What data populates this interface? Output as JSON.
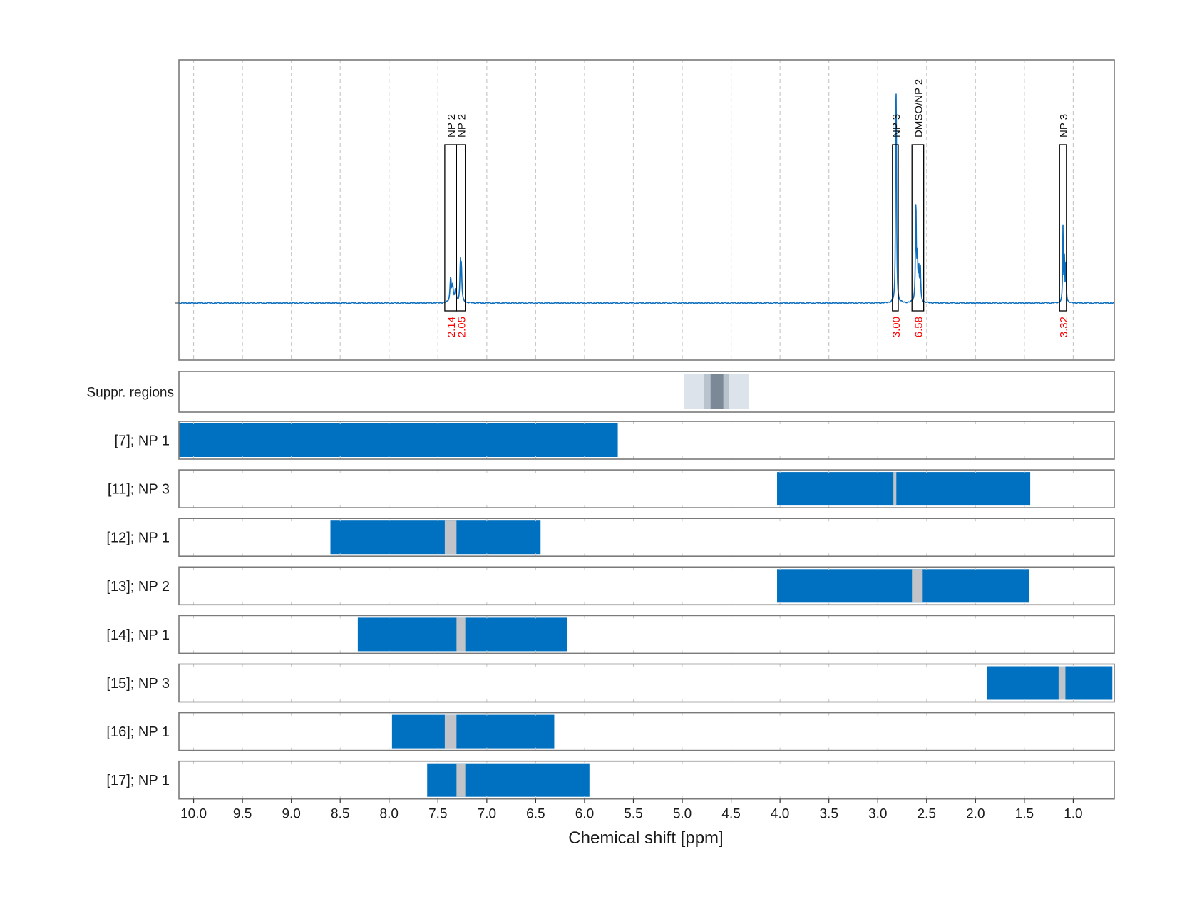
{
  "chart_data": {
    "type": "line",
    "xlabel": "Chemical shift [ppm]",
    "xlim": [
      10.15,
      0.58
    ],
    "x_reversed": true,
    "xticks": [
      10.0,
      9.5,
      9.0,
      8.5,
      8.0,
      7.5,
      7.0,
      6.5,
      6.0,
      5.5,
      5.0,
      4.5,
      4.0,
      3.5,
      3.0,
      2.5,
      2.0,
      1.5,
      1.0
    ],
    "xtick_labels": [
      "10.0",
      "9.5",
      "9.0",
      "8.5",
      "8.0",
      "7.5",
      "7.0",
      "6.5",
      "6.0",
      "5.5",
      "5.0",
      "4.5",
      "4.0",
      "3.5",
      "3.0",
      "2.5",
      "2.0",
      "1.5",
      "1.0"
    ],
    "grid": true,
    "colors": {
      "spectrum": "#0d6ebd",
      "bar": "#0070c0",
      "exclusion": "#c0c4c8",
      "integral_text": "#ff0000",
      "suppr_light": "#dde3ea",
      "suppr_mid": "#b9c3ce",
      "suppr_dark": "#7b8895",
      "box": "#000000",
      "panel_border": "#7a7a7a"
    },
    "spectrum": {
      "baseline": 0,
      "peaks": [
        {
          "center": 7.37,
          "height": 0.15,
          "width": 0.008
        },
        {
          "center": 7.35,
          "height": 0.1,
          "width": 0.008
        },
        {
          "center": 7.32,
          "height": 0.08,
          "width": 0.008
        },
        {
          "center": 7.27,
          "height": 0.23,
          "width": 0.006
        },
        {
          "center": 7.26,
          "height": 0.2,
          "width": 0.006
        },
        {
          "center": 2.815,
          "height": 0.96,
          "width": 0.004
        },
        {
          "center": 2.81,
          "height": 0.9,
          "width": 0.004
        },
        {
          "center": 2.61,
          "height": 0.65,
          "width": 0.005
        },
        {
          "center": 2.595,
          "height": 0.28,
          "width": 0.005
        },
        {
          "center": 2.58,
          "height": 0.2,
          "width": 0.005
        },
        {
          "center": 2.565,
          "height": 0.22,
          "width": 0.005
        },
        {
          "center": 1.105,
          "height": 0.48,
          "width": 0.004
        },
        {
          "center": 1.09,
          "height": 0.27,
          "width": 0.004
        },
        {
          "center": 1.075,
          "height": 0.25,
          "width": 0.004
        }
      ]
    },
    "annotations": [
      {
        "label": "NP 2",
        "x_from": 7.43,
        "x_to": 7.31,
        "integral": "2.14"
      },
      {
        "label": "NP 2",
        "x_from": 7.31,
        "x_to": 7.22,
        "integral": "2.05"
      },
      {
        "label": "NP 3",
        "x_from": 2.85,
        "x_to": 2.79,
        "integral": "3.00"
      },
      {
        "label": "DMSO/NP 2",
        "x_from": 2.65,
        "x_to": 2.53,
        "integral": "6.58"
      },
      {
        "label": "NP 3",
        "x_from": 1.14,
        "x_to": 1.07,
        "integral": "3.32"
      }
    ],
    "suppression_panel": {
      "label": "Suppr. regions",
      "regions": [
        {
          "x_from": 4.98,
          "x_to": 4.32,
          "shade": "light"
        },
        {
          "x_from": 4.78,
          "x_to": 4.52,
          "shade": "mid"
        },
        {
          "x_from": 4.71,
          "x_to": 4.58,
          "shade": "dark"
        }
      ]
    },
    "row_panels": [
      {
        "label": "[7]; NP 1",
        "bars": [
          [
            10.15,
            5.66
          ]
        ],
        "exclusions": []
      },
      {
        "label": "[11]; NP 3",
        "bars": [
          [
            4.03,
            1.44
          ]
        ],
        "exclusions": [
          [
            2.84,
            2.81
          ]
        ]
      },
      {
        "label": "[12]; NP 1",
        "bars": [
          [
            8.6,
            6.45
          ]
        ],
        "exclusions": [
          [
            7.43,
            7.31
          ]
        ]
      },
      {
        "label": "[13]; NP 2",
        "bars": [
          [
            4.03,
            1.45
          ]
        ],
        "exclusions": [
          [
            2.65,
            2.54
          ]
        ]
      },
      {
        "label": "[14]; NP 1",
        "bars": [
          [
            8.32,
            6.18
          ]
        ],
        "exclusions": [
          [
            7.31,
            7.22
          ]
        ]
      },
      {
        "label": "[15]; NP 3",
        "bars": [
          [
            1.88,
            0.6
          ]
        ],
        "exclusions": [
          [
            1.15,
            1.08
          ]
        ]
      },
      {
        "label": "[16]; NP 1",
        "bars": [
          [
            7.97,
            6.31
          ]
        ],
        "exclusions": [
          [
            7.43,
            7.31
          ]
        ]
      },
      {
        "label": "[17]; NP 1",
        "bars": [
          [
            7.61,
            5.95
          ]
        ],
        "exclusions": [
          [
            7.31,
            7.22
          ]
        ]
      }
    ]
  }
}
